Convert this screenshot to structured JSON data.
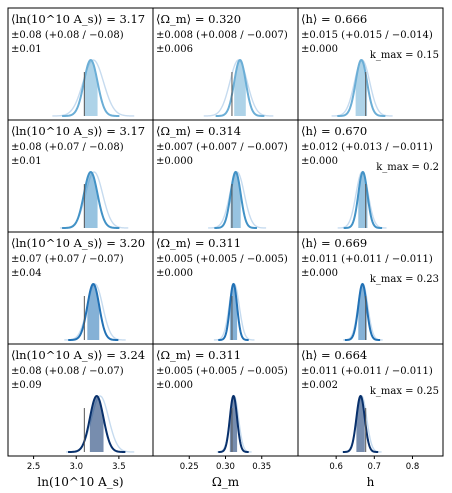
{
  "chart_data": {
    "type": "area",
    "description_free": true,
    "columns": [
      {
        "param": "lnAs",
        "xlabel": "ln(10^10 A_s)",
        "xlim": [
          2.2,
          3.9
        ],
        "ticks": [
          2.5,
          3.0,
          3.5
        ],
        "tick_labels": [
          "2.5",
          "3.0",
          "3.5"
        ],
        "truth": 3.095
      },
      {
        "param": "Om",
        "xlabel": "Ω_m",
        "xlim": [
          0.2,
          0.4
        ],
        "ticks": [
          0.25,
          0.3,
          0.35
        ],
        "tick_labels": [
          "0.25",
          "0.30",
          "0.35"
        ],
        "truth": 0.3089
      },
      {
        "param": "h",
        "xlabel": "h",
        "xlim": [
          0.5,
          0.88
        ],
        "ticks": [
          0.6,
          0.7,
          0.8
        ],
        "tick_labels": [
          "0.6",
          "0.7",
          "0.8"
        ],
        "truth": 0.6774
      }
    ],
    "rows": [
      {
        "kmax_label": "k_max = 0.15",
        "kmax_value": 0.15,
        "color": "#6baed6",
        "cells": [
          {
            "line1": "⟨ln(10^10 A_s)⟩ = 3.17",
            "line2": "±0.08 (+0.08 / −0.08)",
            "line3": "±0.01",
            "mean": 3.17,
            "sigma": 0.08,
            "shadow_mean": 3.2,
            "shadow_sigma": 0.12
          },
          {
            "line1": "⟨Ω_m⟩ = 0.320",
            "line2": "±0.008 (+0.008 / −0.007)",
            "line3": "±0.006",
            "mean": 0.32,
            "sigma": 0.008,
            "shadow_mean": 0.318,
            "shadow_sigma": 0.012
          },
          {
            "line1": "⟨h⟩ = 0.666",
            "line2": "±0.015 (+0.015 / −0.014)",
            "line3": "±0.000",
            "mean": 0.666,
            "sigma": 0.015,
            "shadow_mean": 0.668,
            "shadow_sigma": 0.02
          }
        ]
      },
      {
        "kmax_label": "k_max = 0.2",
        "kmax_value": 0.2,
        "color": "#4292c6",
        "cells": [
          {
            "line1": "⟨ln(10^10 A_s)⟩ = 3.17",
            "line2": "±0.08 (+0.07 / −0.08)",
            "line3": "±0.01",
            "mean": 3.17,
            "sigma": 0.08,
            "shadow_mean": 3.21,
            "shadow_sigma": 0.1
          },
          {
            "line1": "⟨Ω_m⟩ = 0.314",
            "line2": "±0.007 (+0.007 / −0.007)",
            "line3": "±0.000",
            "mean": 0.314,
            "sigma": 0.007,
            "shadow_mean": 0.316,
            "shadow_sigma": 0.01
          },
          {
            "line1": "⟨h⟩ = 0.670",
            "line2": "±0.012 (+0.013 / −0.011)",
            "line3": "±0.000",
            "mean": 0.67,
            "sigma": 0.012,
            "shadow_mean": 0.668,
            "shadow_sigma": 0.016
          }
        ]
      },
      {
        "kmax_label": "k_max = 0.23",
        "kmax_value": 0.23,
        "color": "#2171b5",
        "cells": [
          {
            "line1": "⟨ln(10^10 A_s)⟩ = 3.20",
            "line2": "±0.07 (+0.07 / −0.07)",
            "line3": "±0.04",
            "mean": 3.2,
            "sigma": 0.07,
            "shadow_mean": 3.22,
            "shadow_sigma": 0.09
          },
          {
            "line1": "⟨Ω_m⟩ = 0.311",
            "line2": "±0.005 (+0.005 / −0.005)",
            "line3": "±0.000",
            "mean": 0.311,
            "sigma": 0.005,
            "shadow_mean": 0.312,
            "shadow_sigma": 0.007
          },
          {
            "line1": "⟨h⟩ = 0.669",
            "line2": "±0.011 (+0.011 / −0.011)",
            "line3": "±0.000",
            "mean": 0.669,
            "sigma": 0.011,
            "shadow_mean": 0.67,
            "shadow_sigma": 0.013
          }
        ]
      },
      {
        "kmax_label": "k_max = 0.25",
        "kmax_value": 0.25,
        "color": "#08306b",
        "cells": [
          {
            "line1": "⟨ln(10^10 A_s)⟩ = 3.24",
            "line2": "±0.08 (+0.08 / −0.07)",
            "line3": "±0.09",
            "mean": 3.24,
            "sigma": 0.08,
            "shadow_mean": 3.28,
            "shadow_sigma": 0.1
          },
          {
            "line1": "⟨Ω_m⟩ = 0.311",
            "line2": "±0.005 (+0.005 / −0.005)",
            "line3": "±0.000",
            "mean": 0.311,
            "sigma": 0.005,
            "shadow_mean": 0.312,
            "shadow_sigma": 0.006
          },
          {
            "line1": "⟨h⟩ = 0.664",
            "line2": "±0.011 (+0.011 / −0.011)",
            "line3": "±0.002",
            "mean": 0.664,
            "sigma": 0.011,
            "shadow_mean": 0.667,
            "shadow_sigma": 0.013
          }
        ]
      }
    ],
    "colors": {
      "shadow": "#c6dbef",
      "truth_line": "#555555",
      "frame": "#000000"
    }
  }
}
